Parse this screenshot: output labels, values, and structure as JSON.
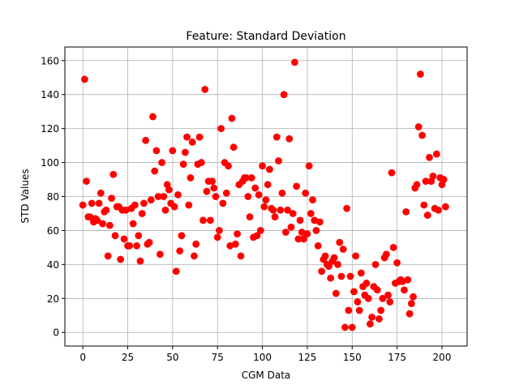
{
  "chart_data": {
    "type": "scatter",
    "title": "Feature: Standard Deviation",
    "xlabel": "CGM Data",
    "ylabel": "STD Values",
    "xlim": [
      -10,
      214
    ],
    "ylim": [
      -8,
      168
    ],
    "xticks": [
      0,
      25,
      50,
      75,
      100,
      125,
      150,
      175,
      200
    ],
    "yticks": [
      0,
      20,
      40,
      60,
      80,
      100,
      120,
      140,
      160
    ],
    "grid": true,
    "marker_color": "#ff0000",
    "series": [
      {
        "points": [
          [
            0,
            75
          ],
          [
            1,
            149
          ],
          [
            2,
            89
          ],
          [
            3,
            68
          ],
          [
            4,
            68
          ],
          [
            5,
            76
          ],
          [
            6,
            65
          ],
          [
            7,
            67
          ],
          [
            8,
            66
          ],
          [
            9,
            76
          ],
          [
            10,
            82
          ],
          [
            11,
            64
          ],
          [
            12,
            71
          ],
          [
            13,
            72
          ],
          [
            14,
            45
          ],
          [
            15,
            63
          ],
          [
            16,
            79
          ],
          [
            17,
            93
          ],
          [
            18,
            57
          ],
          [
            19,
            74
          ],
          [
            20,
            74
          ],
          [
            21,
            43
          ],
          [
            22,
            72
          ],
          [
            23,
            55
          ],
          [
            24,
            72
          ],
          [
            25,
            51
          ],
          [
            26,
            51
          ],
          [
            27,
            73
          ],
          [
            28,
            64
          ],
          [
            29,
            75
          ],
          [
            30,
            51
          ],
          [
            31,
            57
          ],
          [
            32,
            42
          ],
          [
            33,
            70
          ],
          [
            34,
            76
          ],
          [
            35,
            113
          ],
          [
            36,
            52
          ],
          [
            37,
            53
          ],
          [
            38,
            78
          ],
          [
            39,
            127
          ],
          [
            40,
            95
          ],
          [
            41,
            107
          ],
          [
            42,
            80
          ],
          [
            43,
            46
          ],
          [
            44,
            100
          ],
          [
            45,
            80
          ],
          [
            46,
            72
          ],
          [
            47,
            87
          ],
          [
            48,
            84
          ],
          [
            49,
            76
          ],
          [
            50,
            107
          ],
          [
            51,
            74
          ],
          [
            52,
            36
          ],
          [
            53,
            81
          ],
          [
            54,
            48
          ],
          [
            55,
            57
          ],
          [
            56,
            99
          ],
          [
            57,
            106
          ],
          [
            58,
            115
          ],
          [
            59,
            75
          ],
          [
            60,
            91
          ],
          [
            61,
            112
          ],
          [
            62,
            45
          ],
          [
            63,
            52
          ],
          [
            64,
            99
          ],
          [
            65,
            115
          ],
          [
            66,
            100
          ],
          [
            67,
            66
          ],
          [
            68,
            143
          ],
          [
            69,
            83
          ],
          [
            70,
            89
          ],
          [
            71,
            66
          ],
          [
            72,
            89
          ],
          [
            73,
            85
          ],
          [
            74,
            80
          ],
          [
            75,
            56
          ],
          [
            76,
            60
          ],
          [
            77,
            120
          ],
          [
            78,
            76
          ],
          [
            79,
            100
          ],
          [
            80,
            82
          ],
          [
            81,
            98
          ],
          [
            82,
            51
          ],
          [
            83,
            126
          ],
          [
            84,
            109
          ],
          [
            85,
            52
          ],
          [
            86,
            58
          ],
          [
            87,
            87
          ],
          [
            88,
            45
          ],
          [
            89,
            89
          ],
          [
            90,
            91
          ],
          [
            91,
            91
          ],
          [
            92,
            80
          ],
          [
            93,
            68
          ],
          [
            94,
            91
          ],
          [
            95,
            56
          ],
          [
            96,
            85
          ],
          [
            97,
            57
          ],
          [
            98,
            81
          ],
          [
            99,
            60
          ],
          [
            100,
            98
          ],
          [
            101,
            74
          ],
          [
            102,
            78
          ],
          [
            103,
            87
          ],
          [
            104,
            96
          ],
          [
            105,
            73
          ],
          [
            106,
            72
          ],
          [
            107,
            68
          ],
          [
            108,
            115
          ],
          [
            109,
            101
          ],
          [
            110,
            72
          ],
          [
            111,
            82
          ],
          [
            112,
            140
          ],
          [
            113,
            59
          ],
          [
            114,
            72
          ],
          [
            115,
            114
          ],
          [
            116,
            62
          ],
          [
            117,
            70
          ],
          [
            118,
            159
          ],
          [
            119,
            86
          ],
          [
            120,
            55
          ],
          [
            121,
            66
          ],
          [
            122,
            59
          ],
          [
            123,
            55
          ],
          [
            124,
            82
          ],
          [
            125,
            58
          ],
          [
            126,
            98
          ],
          [
            127,
            70
          ],
          [
            128,
            78
          ],
          [
            129,
            66
          ],
          [
            130,
            60
          ],
          [
            131,
            51
          ],
          [
            132,
            65
          ],
          [
            133,
            36
          ],
          [
            134,
            43
          ],
          [
            135,
            45
          ],
          [
            136,
            40
          ],
          [
            137,
            39
          ],
          [
            138,
            32
          ],
          [
            139,
            42
          ],
          [
            140,
            44
          ],
          [
            141,
            23
          ],
          [
            142,
            40
          ],
          [
            143,
            53
          ],
          [
            144,
            33
          ],
          [
            145,
            49
          ],
          [
            146,
            3
          ],
          [
            147,
            73
          ],
          [
            148,
            13
          ],
          [
            149,
            33
          ],
          [
            150,
            3
          ],
          [
            151,
            24
          ],
          [
            152,
            45
          ],
          [
            153,
            18
          ],
          [
            154,
            13
          ],
          [
            155,
            35
          ],
          [
            156,
            27
          ],
          [
            157,
            22
          ],
          [
            158,
            29
          ],
          [
            159,
            20
          ],
          [
            160,
            5
          ],
          [
            161,
            9
          ],
          [
            162,
            27
          ],
          [
            163,
            40
          ],
          [
            164,
            25
          ],
          [
            165,
            8
          ],
          [
            166,
            13
          ],
          [
            167,
            20
          ],
          [
            168,
            44
          ],
          [
            169,
            46
          ],
          [
            170,
            22
          ],
          [
            171,
            18
          ],
          [
            172,
            94
          ],
          [
            173,
            50
          ],
          [
            174,
            29
          ],
          [
            175,
            41
          ],
          [
            176,
            30
          ],
          [
            177,
            31
          ],
          [
            178,
            30
          ],
          [
            179,
            25
          ],
          [
            180,
            71
          ],
          [
            181,
            31
          ],
          [
            182,
            11
          ],
          [
            183,
            17
          ],
          [
            184,
            21
          ],
          [
            185,
            85
          ],
          [
            186,
            87
          ],
          [
            187,
            121
          ],
          [
            188,
            152
          ],
          [
            189,
            116
          ],
          [
            190,
            75
          ],
          [
            191,
            89
          ],
          [
            192,
            69
          ],
          [
            193,
            103
          ],
          [
            194,
            89
          ],
          [
            195,
            92
          ],
          [
            196,
            73
          ],
          [
            197,
            105
          ],
          [
            198,
            72
          ],
          [
            199,
            91
          ],
          [
            200,
            87
          ],
          [
            201,
            90
          ],
          [
            202,
            74
          ]
        ]
      }
    ]
  }
}
